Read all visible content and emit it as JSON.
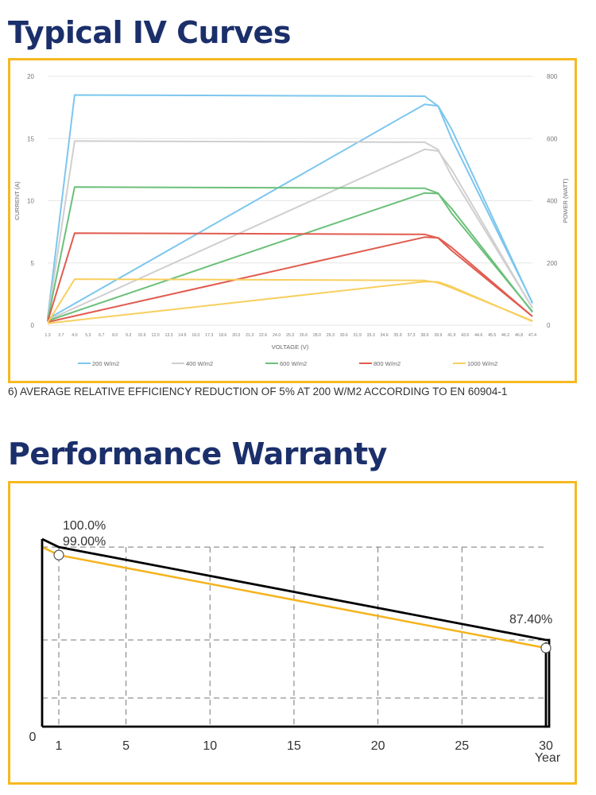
{
  "iv_section": {
    "title": "Typical IV Curves",
    "footnote": "6) AVERAGE RELATIVE EFFICIENCY REDUCTION OF 5% AT 200 W/M2 ACCORDING TO EN 60904-1"
  },
  "warranty_section": {
    "title": "Performance Warranty"
  },
  "chart_data": [
    {
      "type": "line",
      "xlabel": "VOLTAGE (V)",
      "ylabel": "CURRENT (A)",
      "y2label": "POWER (WATT)",
      "x_ticks": [
        "1.3",
        "2.7",
        "4.0",
        "5.3",
        "6.7",
        "8.0",
        "9.3",
        "10.6",
        "12.0",
        "13.3",
        "14.6",
        "16.0",
        "17.3",
        "18.6",
        "20.0",
        "21.3",
        "22.6",
        "24.0",
        "25.3",
        "26.6",
        "28.0",
        "29.3",
        "30.6",
        "31.9",
        "33.3",
        "34.6",
        "35.9",
        "37.3",
        "38.6",
        "39.9",
        "41.9",
        "43.6",
        "44.6",
        "45.5",
        "46.2",
        "46.8",
        "47.4"
      ],
      "ylim": [
        0,
        20
      ],
      "y_ticks": [
        0,
        5,
        10,
        15,
        20
      ],
      "y2lim": [
        0,
        800
      ],
      "y2_ticks": [
        0,
        200,
        400,
        600,
        800
      ],
      "grid": true,
      "legend": "bottom",
      "series": [
        {
          "name": "200 W/m2",
          "color": "#7cc6ee",
          "current": [
            [
              1.3,
              0.6
            ],
            [
              4.0,
              18.5
            ],
            [
              38.6,
              18.4
            ],
            [
              39.9,
              17.6
            ],
            [
              41.9,
              15.0
            ],
            [
              47.4,
              1.8
            ]
          ],
          "power": [
            [
              1.3,
              20
            ],
            [
              38.6,
              710
            ],
            [
              39.9,
              705
            ],
            [
              41.9,
              630
            ],
            [
              47.4,
              70
            ]
          ]
        },
        {
          "name": "400 W/m2",
          "color": "#cfcfcf",
          "current": [
            [
              1.3,
              0.5
            ],
            [
              4.0,
              14.8
            ],
            [
              38.6,
              14.7
            ],
            [
              39.9,
              14.1
            ],
            [
              41.9,
              12.0
            ],
            [
              47.4,
              1.4
            ]
          ],
          "power": [
            [
              1.3,
              16
            ],
            [
              38.6,
              565
            ],
            [
              39.9,
              560
            ],
            [
              41.9,
              500
            ],
            [
              47.4,
              55
            ]
          ]
        },
        {
          "name": "600 W/m2",
          "color": "#6cc07a",
          "current": [
            [
              1.3,
              0.4
            ],
            [
              4.0,
              11.1
            ],
            [
              38.6,
              11.0
            ],
            [
              39.9,
              10.6
            ],
            [
              41.9,
              9.0
            ],
            [
              47.4,
              1.1
            ]
          ],
          "power": [
            [
              1.3,
              14
            ],
            [
              38.6,
              425
            ],
            [
              39.9,
              423
            ],
            [
              41.9,
              375
            ],
            [
              47.4,
              42
            ]
          ]
        },
        {
          "name": "800 W/m2",
          "color": "#e15b4f",
          "current": [
            [
              1.3,
              0.3
            ],
            [
              4.0,
              7.4
            ],
            [
              38.6,
              7.3
            ],
            [
              39.9,
              7.0
            ],
            [
              41.9,
              6.0
            ],
            [
              47.4,
              0.7
            ]
          ],
          "power": [
            [
              1.3,
              10
            ],
            [
              38.6,
              283
            ],
            [
              39.9,
              281
            ],
            [
              41.9,
              250
            ],
            [
              47.4,
              28
            ]
          ]
        },
        {
          "name": "1000 W/m2",
          "color": "#f8cf5e",
          "current": [
            [
              1.3,
              0.2
            ],
            [
              4.0,
              3.7
            ],
            [
              38.6,
              3.6
            ],
            [
              39.9,
              3.4
            ],
            [
              41.9,
              3.0
            ],
            [
              47.4,
              0.35
            ]
          ],
          "power": [
            [
              1.3,
              6
            ],
            [
              38.6,
              140
            ],
            [
              39.9,
              139
            ],
            [
              41.9,
              124
            ],
            [
              47.4,
              12
            ]
          ]
        }
      ]
    },
    {
      "type": "line",
      "xlabel": "Year",
      "x_ticks": [
        1,
        5,
        10,
        15,
        20,
        25,
        30
      ],
      "y_origin_label": "0",
      "ylim": [
        0,
        100
      ],
      "grid": "dashed",
      "series": [
        {
          "role": "warranty",
          "color": "#000000",
          "points": [
            [
              0,
              100.0
            ],
            [
              1,
              99.0
            ],
            [
              30,
              87.4
            ]
          ]
        },
        {
          "role": "linear",
          "color": "#f5b31c",
          "points": [
            [
              0,
              99.0
            ],
            [
              1,
              98.0
            ],
            [
              30,
              86.4
            ]
          ]
        }
      ],
      "annotations": [
        "100.0%",
        "99.00%",
        "87.40%"
      ]
    }
  ]
}
